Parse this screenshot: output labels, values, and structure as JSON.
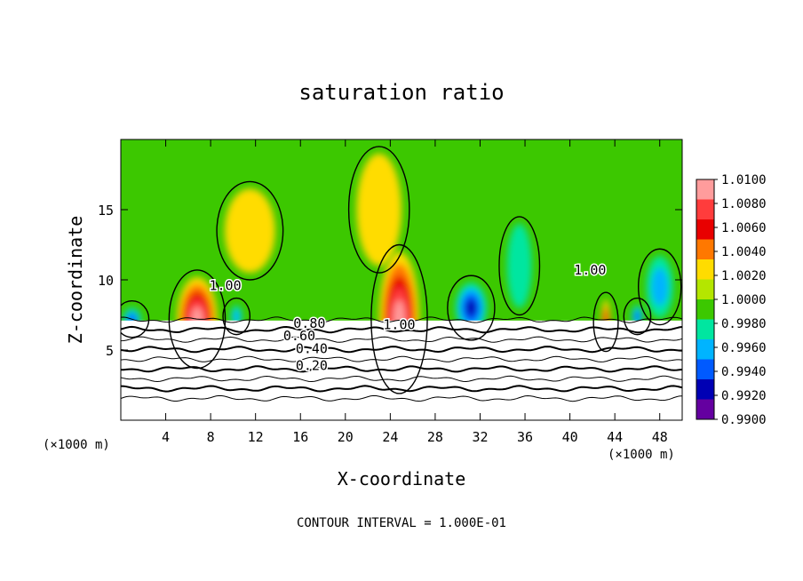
{
  "chart_data": {
    "type": "heatmap",
    "title": "saturation ratio",
    "xlabel": "X-coordinate",
    "ylabel": "Z-coordinate",
    "x_unit": "(×1000 m)",
    "z_unit": "(×1000 m)",
    "xlim": [
      0,
      50
    ],
    "ylim": [
      0,
      20
    ],
    "x_ticks": [
      "4",
      "8",
      "12",
      "16",
      "20",
      "24",
      "28",
      "32",
      "36",
      "40",
      "44",
      "48"
    ],
    "y_ticks": [
      "5",
      "10",
      "15"
    ],
    "footer": "CONTOUR INTERVAL = 1.000E-01",
    "colorbar": {
      "min": 0.99,
      "max": 1.01,
      "labels": [
        "1.0100",
        "1.0080",
        "1.0060",
        "1.0040",
        "1.0020",
        "1.0000",
        "0.9980",
        "0.9960",
        "0.9940",
        "0.9920",
        "0.9900"
      ],
      "colors": [
        "#ff9c9c",
        "#ff3c3c",
        "#e80000",
        "#ff7800",
        "#ffdc00",
        "#b4e600",
        "#3cc800",
        "#00e6a0",
        "#00b4ff",
        "#005aff",
        "#0000b4",
        "#6400a0"
      ]
    },
    "contour_labels": [
      {
        "text": "1.00",
        "x": 9.3,
        "z": 9.6
      },
      {
        "text": "1.00",
        "x": 24.8,
        "z": 6.8
      },
      {
        "text": "1.00",
        "x": 41.8,
        "z": 10.7
      },
      {
        "text": "0.80",
        "x": 16.8,
        "z": 6.9
      },
      {
        "text": "0.60",
        "x": 15.9,
        "z": 6.0
      },
      {
        "text": "0.40",
        "x": 17.0,
        "z": 5.1
      },
      {
        "text": "0.20",
        "x": 17.0,
        "z": 3.9
      }
    ],
    "stable_layer_contours": [
      0.1,
      0.2,
      0.3,
      0.4,
      0.5,
      0.6,
      0.7,
      0.8,
      0.9
    ],
    "features": [
      {
        "kind": "max",
        "x": 6.8,
        "z": 7.2,
        "value": 1.01,
        "width": 3.6,
        "height": 3.0
      },
      {
        "kind": "max",
        "x": 24.8,
        "z": 7.2,
        "value": 1.01,
        "width": 3.6,
        "height": 4.8
      },
      {
        "kind": "max",
        "x": 43.2,
        "z": 7.0,
        "value": 1.006,
        "width": 0.8,
        "height": 1.6
      },
      {
        "kind": "max",
        "x": 11.5,
        "z": 13.5,
        "value": 1.003,
        "width": 4.5,
        "height": 3.0
      },
      {
        "kind": "max",
        "x": 23.0,
        "z": 15.0,
        "value": 1.002,
        "width": 4.0,
        "height": 4.0
      },
      {
        "kind": "min",
        "x": 31.2,
        "z": 8.0,
        "value": 0.991,
        "width": 2.8,
        "height": 1.8
      },
      {
        "kind": "min",
        "x": 35.5,
        "z": 11.0,
        "value": 0.997,
        "width": 2.2,
        "height": 3.0
      },
      {
        "kind": "min",
        "x": 1.0,
        "z": 7.2,
        "value": 0.993,
        "width": 1.6,
        "height": 0.8
      },
      {
        "kind": "min",
        "x": 10.3,
        "z": 7.4,
        "value": 0.995,
        "width": 1.0,
        "height": 0.8
      },
      {
        "kind": "min",
        "x": 46.0,
        "z": 7.4,
        "value": 0.994,
        "width": 1.0,
        "height": 0.8
      },
      {
        "kind": "min",
        "x": 48.0,
        "z": 9.5,
        "value": 0.996,
        "width": 2.4,
        "height": 2.2
      }
    ]
  }
}
